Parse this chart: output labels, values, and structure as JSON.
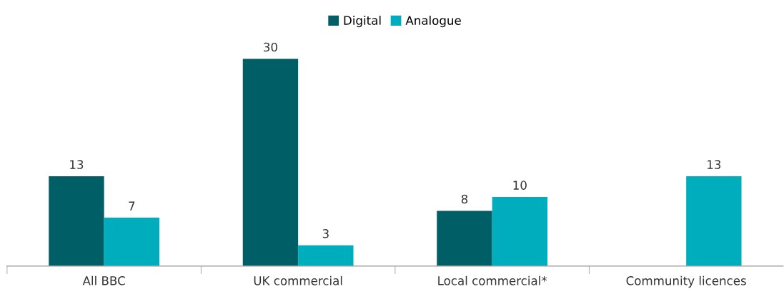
{
  "chart_data": {
    "type": "bar",
    "categories": [
      "All BBC",
      "UK commercial",
      "Local commercial*",
      "Community licences"
    ],
    "series": [
      {
        "name": "Digital",
        "color": "#005f66",
        "values": [
          13,
          30,
          8,
          null
        ]
      },
      {
        "name": "Analogue",
        "color": "#00adbc",
        "values": [
          7,
          3,
          10,
          13
        ]
      }
    ],
    "data_labels": true,
    "legend": "top",
    "grid": false
  }
}
